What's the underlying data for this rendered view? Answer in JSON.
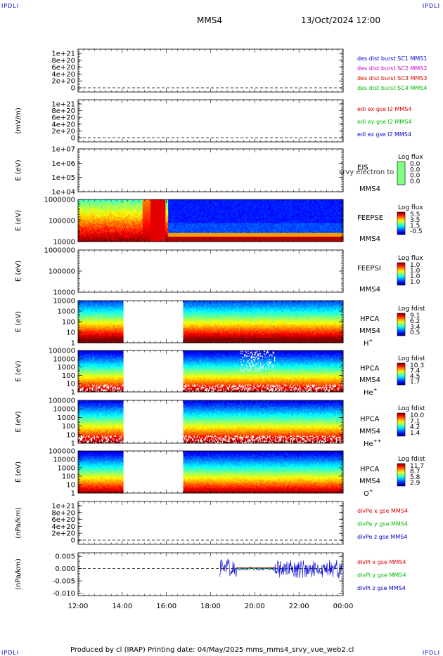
{
  "header": {
    "corner_left": "IPDLI",
    "corner_right": "IPDLI",
    "spacecraft": "MMS4",
    "date": "13/Oct/2024 12:00"
  },
  "footer": {
    "text": "Produced by cl (IRAP)   Printing date: 04/May/2025   mms_mms4_srvy_vue_web2.cl",
    "corner_left": "IPDLI",
    "corner_right": "IPDLI"
  },
  "x_axis": {
    "ticks": [
      "12:00",
      "14:00",
      "16:00",
      "18:00",
      "20:00",
      "22:00",
      "00:00"
    ]
  },
  "colors": {
    "red": "#dd0000",
    "green": "#00bb00",
    "blue": "#0000cc",
    "magenta": "#cc00cc"
  },
  "chart_data": [
    {
      "id": "p1",
      "type": "line",
      "ylabel": "",
      "y_ticks": [
        "1e+21",
        "8e+20",
        "6e+20",
        "4e+20",
        "2e+20",
        "0"
      ],
      "legend": [
        {
          "text": "des dist burst SC1 MMS1",
          "color": "#0000cc"
        },
        {
          "text": "des dist burst SC2 MMS2",
          "color": "#cc00cc"
        },
        {
          "text": "des dist burst SC3 MMS3",
          "color": "#dd0000"
        },
        {
          "text": "des dist burst SC4 MMS4",
          "color": "#00bb00"
        }
      ],
      "zero_line": true
    },
    {
      "id": "p2",
      "type": "line",
      "ylabel": "(mV/m)",
      "y_ticks": [
        "1e+21",
        "8e+20",
        "6e+20",
        "4e+20",
        "2e+20",
        "0"
      ],
      "legend": [
        {
          "text": "edi ex gse l2 MMS4",
          "color": "#dd0000"
        },
        {
          "text": "edi ey gse l2 MMS4",
          "color": "#00bb00"
        },
        {
          "text": "edi ez gse l2 MMS4",
          "color": "#0000cc"
        }
      ],
      "zero_line": true
    },
    {
      "id": "p3",
      "type": "heatmap",
      "ylabel": "E (eV)",
      "y_ticks": [
        "1e+07",
        "1e+06",
        "1e+05",
        "1e+04"
      ],
      "instrument": "EIS",
      "sc": "MMS4",
      "overlay": "srvy electron to",
      "colorbar": {
        "title": "Log flux",
        "ticks": [
          "0.0",
          "0.0",
          "0.0",
          "0.0"
        ]
      }
    },
    {
      "id": "p4",
      "type": "heatmap",
      "ylabel": "E (eV)",
      "y_ticks": [
        "1000000",
        "100000",
        "10000"
      ],
      "instrument": "FEEPSE",
      "sc": "MMS4",
      "colorbar": {
        "title": "Log flux",
        "ticks": [
          "5.5",
          "3.5",
          "1.5",
          "-0.5"
        ]
      },
      "x_range": [
        "12:00",
        "00:00"
      ]
    },
    {
      "id": "p5",
      "type": "heatmap",
      "ylabel": "E (eV)",
      "y_ticks": [
        "1000000",
        "100000",
        "10000"
      ],
      "instrument": "FEEPSI",
      "sc": "MMS4",
      "colorbar": {
        "title": "Log flux",
        "ticks": [
          "1.0",
          "1.0",
          "1.0",
          "1.0"
        ]
      }
    },
    {
      "id": "p6",
      "type": "heatmap",
      "ylabel": "E (eV)",
      "y_ticks": [
        "10000",
        "1000",
        "100",
        "10",
        "1"
      ],
      "instrument": "HPCA",
      "sc": "MMS4",
      "species": "H",
      "species_sup": "+",
      "colorbar": {
        "title": "Log fdist",
        "ticks": [
          "9.1",
          "6.2",
          "3.4",
          "0.5"
        ]
      },
      "data_gap": [
        "14:03",
        "16:45"
      ]
    },
    {
      "id": "p7",
      "type": "heatmap",
      "ylabel": "E (eV)",
      "y_ticks": [
        "100000",
        "10000",
        "1000",
        "100",
        "10",
        "1"
      ],
      "instrument": "HPCA",
      "sc": "MMS4",
      "species": "He",
      "species_sup": "+",
      "colorbar": {
        "title": "Log fdist",
        "ticks": [
          "10.3",
          "7.4",
          "4.5",
          "1.7"
        ]
      },
      "data_gap": [
        "14:03",
        "16:45"
      ]
    },
    {
      "id": "p8",
      "type": "heatmap",
      "ylabel": "E (eV)",
      "y_ticks": [
        "100000",
        "10000",
        "1000",
        "100",
        "10",
        "1"
      ],
      "instrument": "HPCA",
      "sc": "MMS4",
      "species": "He",
      "species_sup": "++",
      "colorbar": {
        "title": "Log fdist",
        "ticks": [
          "10.0",
          "7.1",
          "4.2",
          "1.4"
        ]
      },
      "data_gap": [
        "14:03",
        "16:45"
      ]
    },
    {
      "id": "p9",
      "type": "heatmap",
      "ylabel": "E (eV)",
      "y_ticks": [
        "100000",
        "10000",
        "1000",
        "100",
        "10",
        "1"
      ],
      "instrument": "HPCA",
      "sc": "MMS4",
      "species": "O",
      "species_sup": "+",
      "colorbar": {
        "title": "Log fdist",
        "ticks": [
          "11.7",
          "8.7",
          "5.8",
          "2.9"
        ]
      },
      "data_gap": [
        "14:03",
        "16:45"
      ]
    },
    {
      "id": "p10",
      "type": "line",
      "ylabel": "(nPa/km)",
      "y_ticks": [
        "1e+21",
        "8e+20",
        "6e+20",
        "4e+20",
        "2e+20",
        "0"
      ],
      "legend": [
        {
          "text": "divPe x gse MMS4",
          "color": "#dd0000"
        },
        {
          "text": "divPe y gse MMS4",
          "color": "#00bb00"
        },
        {
          "text": "divPe z gse MMS4",
          "color": "#0000cc"
        }
      ],
      "zero_line": true
    },
    {
      "id": "p11",
      "type": "line",
      "ylabel": "(nPa/km)",
      "y_ticks": [
        "0.005",
        "0.000",
        "-0.005",
        "-0.010"
      ],
      "ylim": [
        -0.011,
        0.0065
      ],
      "legend": [
        {
          "text": "divPi x gse MMS4",
          "color": "#dd0000"
        },
        {
          "text": "divPi y gse MMS4",
          "color": "#00bb00"
        },
        {
          "text": "divPi z gse MMS4",
          "color": "#0000cc"
        }
      ],
      "zero_line": true,
      "data_start": "18:25",
      "quiet_interval": [
        "19:10",
        "20:55"
      ],
      "z_amplitude_active": 0.0045,
      "z_amplitude_quiet": 0.0008
    }
  ]
}
